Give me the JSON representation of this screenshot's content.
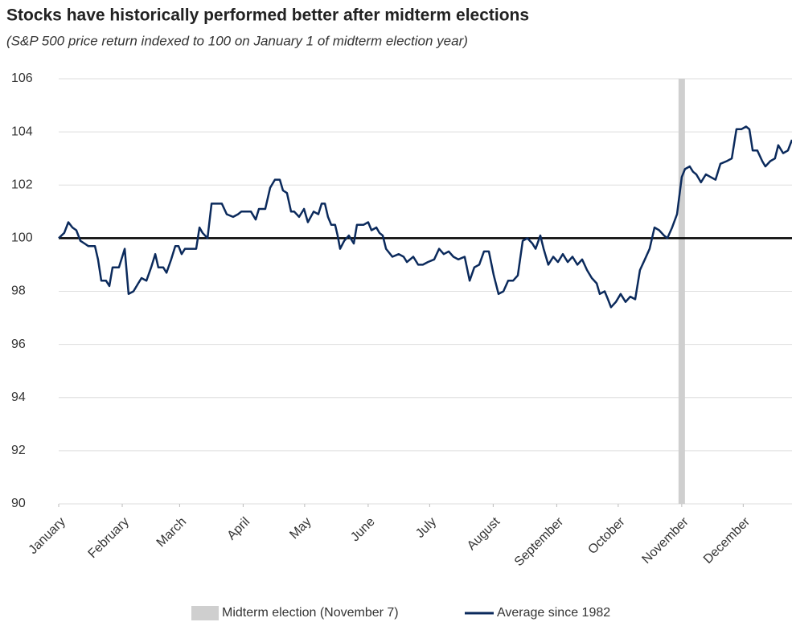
{
  "chart_data": {
    "type": "line",
    "title": "Stocks have historically performed better after midterm elections",
    "subtitle": "(S&P 500 price return indexed to 100 on January 1 of midterm election year)",
    "x": [
      0,
      2.7,
      4.7,
      6.7,
      8.6,
      10.6,
      12.6,
      14.5,
      17.7,
      19.2,
      20.8,
      23.1,
      24.7,
      26.3,
      29.4,
      32.2,
      34.1,
      36.5,
      38.8,
      40.4,
      42.8,
      45.1,
      47.1,
      48.6,
      51.0,
      52.6,
      54.9,
      56.9,
      58.5,
      60.0,
      61.6,
      64.0,
      67.1,
      68.7,
      70.2,
      72.6,
      74.6,
      77.3,
      79.6,
      82.0,
      85.1,
      87.5,
      89.1,
      91.4,
      93.8,
      96.1,
      97.7,
      100.8,
      103.2,
      105.5,
      107.9,
      109.4,
      111.4,
      113.4,
      114.9,
      117.3,
      119.7,
      121.6,
      124.4,
      126.7,
      128.3,
      129.9,
      131.4,
      133.0,
      134.9,
      136.1,
      137.3,
      139.3,
      141.6,
      144.0,
      145.5,
      148.7,
      151.0,
      152.6,
      155.0,
      156.5,
      158.1,
      159.7,
      162.8,
      165.9,
      168.3,
      169.9,
      173.0,
      175.4,
      177.7,
      180.1,
      183.2,
      185.6,
      187.9,
      190.3,
      192.6,
      195.0,
      198.1,
      200.5,
      202.8,
      205.2,
      207.5,
      209.9,
      212.3,
      214.6,
      217.0,
      219.3,
      221.7,
      224.0,
      226.4,
      228.7,
      231.1,
      232.7,
      235.0,
      236.6,
      238.9,
      241.3,
      243.6,
      246.0,
      248.4,
      250.7,
      253.1,
      255.4,
      257.8,
      260.1,
      262.5,
      264.0,
      266.4,
      268.0,
      269.5,
      271.9,
      274.2,
      276.6,
      278.9,
      281.3,
      283.6,
      286.0,
      288.3,
      290.7,
      293.0,
      295.4,
      297.0,
      299.3,
      301.7,
      304.0,
      305.6,
      307.9,
      309.5,
      311.1,
      313.4,
      315.8,
      318.1,
      320.5,
      322.9,
      326.0,
      328.4,
      330.7,
      333.1,
      335.4,
      337.0,
      338.6,
      340.9,
      343.3,
      344.8,
      347.2,
      349.5,
      351.1,
      353.5,
      355.8,
      357.8
    ],
    "series": [
      {
        "name": "Average since 1982",
        "color": "#0b2a5c",
        "values": [
          100.0,
          100.2,
          100.6,
          100.4,
          100.3,
          99.9,
          99.8,
          99.7,
          99.7,
          99.2,
          98.4,
          98.4,
          98.2,
          98.9,
          98.9,
          99.6,
          97.9,
          98.0,
          98.3,
          98.5,
          98.4,
          98.9,
          99.4,
          98.9,
          98.9,
          98.7,
          99.2,
          99.7,
          99.7,
          99.4,
          99.6,
          99.6,
          99.6,
          100.4,
          100.2,
          100.0,
          101.3,
          101.3,
          101.3,
          100.9,
          100.8,
          100.9,
          101.0,
          101.0,
          101.0,
          100.7,
          101.1,
          101.1,
          101.9,
          102.2,
          102.2,
          101.8,
          101.7,
          101.0,
          101.0,
          100.8,
          101.1,
          100.6,
          101.0,
          100.9,
          101.3,
          101.3,
          100.8,
          100.5,
          100.5,
          100.1,
          99.6,
          99.9,
          100.1,
          99.8,
          100.5,
          100.5,
          100.6,
          100.3,
          100.4,
          100.2,
          100.1,
          99.6,
          99.3,
          99.4,
          99.3,
          99.1,
          99.3,
          99.0,
          99.0,
          99.1,
          99.2,
          99.6,
          99.4,
          99.5,
          99.3,
          99.2,
          99.3,
          98.4,
          98.9,
          99.0,
          99.5,
          99.5,
          98.6,
          97.9,
          98.0,
          98.4,
          98.4,
          98.6,
          99.9,
          100.0,
          99.8,
          99.6,
          100.1,
          99.6,
          99.0,
          99.3,
          99.1,
          99.4,
          99.1,
          99.3,
          99.0,
          99.2,
          98.8,
          98.5,
          98.3,
          97.9,
          98.0,
          97.7,
          97.4,
          97.6,
          97.9,
          97.6,
          97.8,
          97.7,
          98.8,
          99.2,
          99.6,
          100.4,
          100.3,
          100.1,
          100.0,
          100.4,
          100.9,
          102.3,
          102.6,
          102.7,
          102.5,
          102.4,
          102.1,
          102.4,
          102.3,
          102.2,
          102.8,
          102.9,
          103.0,
          104.1,
          104.1,
          104.2,
          104.1,
          103.3,
          103.3,
          102.9,
          102.7,
          102.9,
          103.0,
          103.5,
          103.2,
          103.3,
          103.7
        ]
      }
    ],
    "xlim": [
      0,
      357.8
    ],
    "xticks": [
      {
        "value": 0,
        "label": "January"
      },
      {
        "value": 31,
        "label": "February"
      },
      {
        "value": 59,
        "label": "March"
      },
      {
        "value": 90,
        "label": "April"
      },
      {
        "value": 120,
        "label": "May"
      },
      {
        "value": 151,
        "label": "June"
      },
      {
        "value": 181,
        "label": "July"
      },
      {
        "value": 212,
        "label": "August"
      },
      {
        "value": 243,
        "label": "September"
      },
      {
        "value": 273,
        "label": "October"
      },
      {
        "value": 304,
        "label": "November"
      },
      {
        "value": 334,
        "label": "December"
      }
    ],
    "ylim": [
      90,
      106
    ],
    "yticks": [
      90,
      92,
      94,
      96,
      98,
      100,
      102,
      104,
      106
    ],
    "grid": true,
    "reference_line": 100,
    "band": {
      "x": 304,
      "label": "Midterm election (November 7)",
      "color": "#cfcfcf"
    }
  }
}
